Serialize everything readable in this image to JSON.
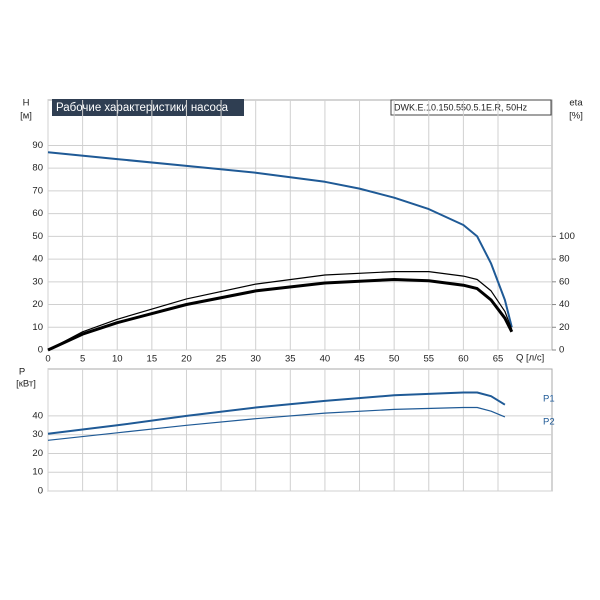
{
  "chart_data": [
    {
      "type": "line",
      "title": "Рабочие характеристики насоса",
      "subtitle": "DWK.E.10.150.550.5.1E.R, 50Hz",
      "xlabel": "Q [л/с]",
      "ylabel": "H",
      "ylabel_unit": "[м]",
      "y2label": "eta",
      "y2label_unit": "[%]",
      "xlim": [
        0,
        72.8
      ],
      "xticks": [
        0,
        5,
        10,
        15,
        20,
        25,
        30,
        35,
        40,
        45,
        50,
        55,
        60,
        65
      ],
      "ylim": [
        0,
        110
      ],
      "yticks": [
        0,
        10,
        20,
        30,
        40,
        50,
        60,
        70,
        80,
        90
      ],
      "y2lim": [
        0,
        220
      ],
      "y2ticks": [
        0,
        20,
        40,
        60,
        80,
        100
      ],
      "grid": true,
      "series": [
        {
          "color": "#1f5a96",
          "line_width": 2,
          "x": [
            0,
            10,
            20,
            30,
            40,
            45,
            50,
            55,
            60,
            62,
            64,
            66,
            67
          ],
          "values": [
            87,
            84,
            81,
            78,
            74,
            71,
            67,
            62,
            55,
            50,
            38,
            22,
            10
          ]
        },
        {
          "color": "#000000",
          "line_width": 1.2,
          "axis": "y2",
          "x": [
            0,
            5,
            10,
            20,
            30,
            40,
            50,
            55,
            60,
            62,
            64,
            66,
            67
          ],
          "values": [
            0,
            16,
            27,
            45,
            58,
            66,
            69,
            69,
            65,
            62,
            52,
            34,
            18
          ]
        },
        {
          "color": "#000000",
          "line_width": 3,
          "axis": "y2",
          "x": [
            0,
            5,
            10,
            20,
            30,
            40,
            50,
            55,
            60,
            62,
            64,
            66,
            67
          ],
          "values": [
            0,
            14,
            24,
            40,
            52,
            59,
            62,
            61,
            57,
            54,
            44,
            28,
            16
          ]
        }
      ]
    },
    {
      "type": "line",
      "ylabel": "P",
      "ylabel_unit": "[кВт]",
      "ylim": [
        0,
        65
      ],
      "yticks": [
        0,
        10,
        20,
        30,
        40
      ],
      "grid": true,
      "series": [
        {
          "name": "P1",
          "color": "#1f5a96",
          "line_width": 2,
          "x": [
            0,
            10,
            20,
            30,
            40,
            50,
            60,
            62,
            64,
            66
          ],
          "values": [
            30.5,
            35,
            40,
            44.5,
            48,
            51,
            52.5,
            52.5,
            50.5,
            46
          ]
        },
        {
          "name": "P2",
          "color": "#1f5a96",
          "line_width": 1.2,
          "x": [
            0,
            10,
            20,
            30,
            40,
            50,
            60,
            62,
            64,
            66
          ],
          "values": [
            27,
            31,
            35,
            38.5,
            41.5,
            43.5,
            44.5,
            44.5,
            42.5,
            39.5
          ]
        }
      ]
    }
  ]
}
